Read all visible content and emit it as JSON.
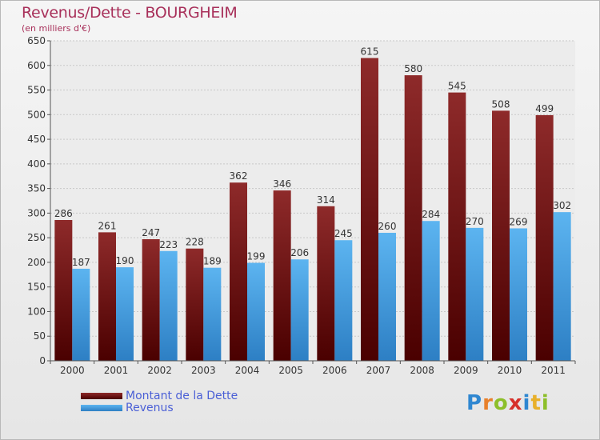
{
  "chart_data": {
    "type": "bar",
    "title": "Revenus/Dette - BOURGHEIM",
    "subtitle": "(en milliers d'€)",
    "categories": [
      "2000",
      "2001",
      "2002",
      "2003",
      "2004",
      "2005",
      "2006",
      "2007",
      "2008",
      "2009",
      "2010",
      "2011"
    ],
    "series": [
      {
        "name": "Montant de la Dette",
        "color": "#8b1a1a",
        "values": [
          286,
          261,
          247,
          228,
          362,
          346,
          314,
          615,
          580,
          545,
          508,
          499
        ]
      },
      {
        "name": "Revenus",
        "color": "#4da6e8",
        "values": [
          187,
          190,
          223,
          189,
          199,
          206,
          245,
          260,
          284,
          270,
          269,
          302
        ]
      }
    ],
    "ylim": [
      0,
      650
    ],
    "yticks": [
      0,
      50,
      100,
      150,
      200,
      250,
      300,
      350,
      400,
      450,
      500,
      550,
      600,
      650
    ],
    "grid": true,
    "legend_position": "bottom-left"
  },
  "logo": {
    "text": "Proxiti",
    "letters": [
      "P",
      "r",
      "o",
      "x",
      "i",
      "t",
      "i"
    ]
  }
}
